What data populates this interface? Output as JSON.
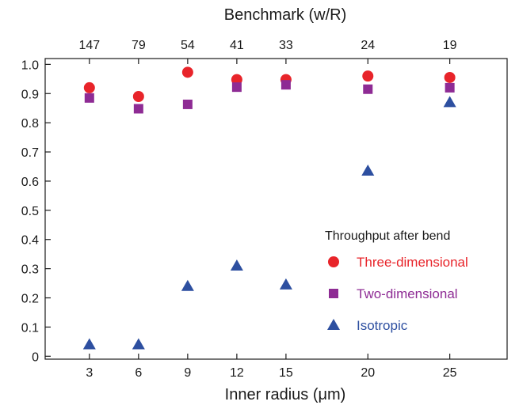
{
  "chart_data": {
    "type": "scatter",
    "xlabel": "Inner radius (μm)",
    "x2label": "Benchmark (w/R)",
    "x": [
      3,
      6,
      9,
      12,
      15,
      20,
      25
    ],
    "x_tick_labels": [
      "3",
      "6",
      "9",
      "12",
      "15",
      "20",
      "25"
    ],
    "x2_tick_labels": [
      "147",
      "79",
      "54",
      "41",
      "33",
      "24",
      "19"
    ],
    "xlim": [
      0.3,
      28.5
    ],
    "ylim": [
      -0.01,
      1.02
    ],
    "y_ticks": [
      0,
      0.1,
      0.2,
      0.3,
      0.4,
      0.5,
      0.6,
      0.7,
      0.8,
      0.9,
      1.0
    ],
    "y_tick_labels": [
      "0",
      "0.1",
      "0.2",
      "0.3",
      "0.4",
      "0.5",
      "0.6",
      "0.7",
      "0.8",
      "0.9",
      "1.0"
    ],
    "grid": false,
    "legend_title": "Throughput after bend",
    "legend_position": "center-right",
    "series": [
      {
        "name": "Three-dimensional",
        "marker": "circle",
        "color": "#e8242a",
        "values": [
          0.92,
          0.89,
          0.973,
          0.948,
          0.948,
          0.96,
          0.955
        ]
      },
      {
        "name": "Two-dimensional",
        "marker": "square",
        "color": "#8e2b94",
        "values": [
          0.885,
          0.848,
          0.863,
          0.922,
          0.93,
          0.915,
          0.92
        ]
      },
      {
        "name": "Isotropic",
        "marker": "triangle",
        "color": "#2d4fa0",
        "values": [
          0.04,
          0.04,
          0.24,
          0.31,
          0.245,
          0.635,
          0.87
        ]
      }
    ]
  }
}
